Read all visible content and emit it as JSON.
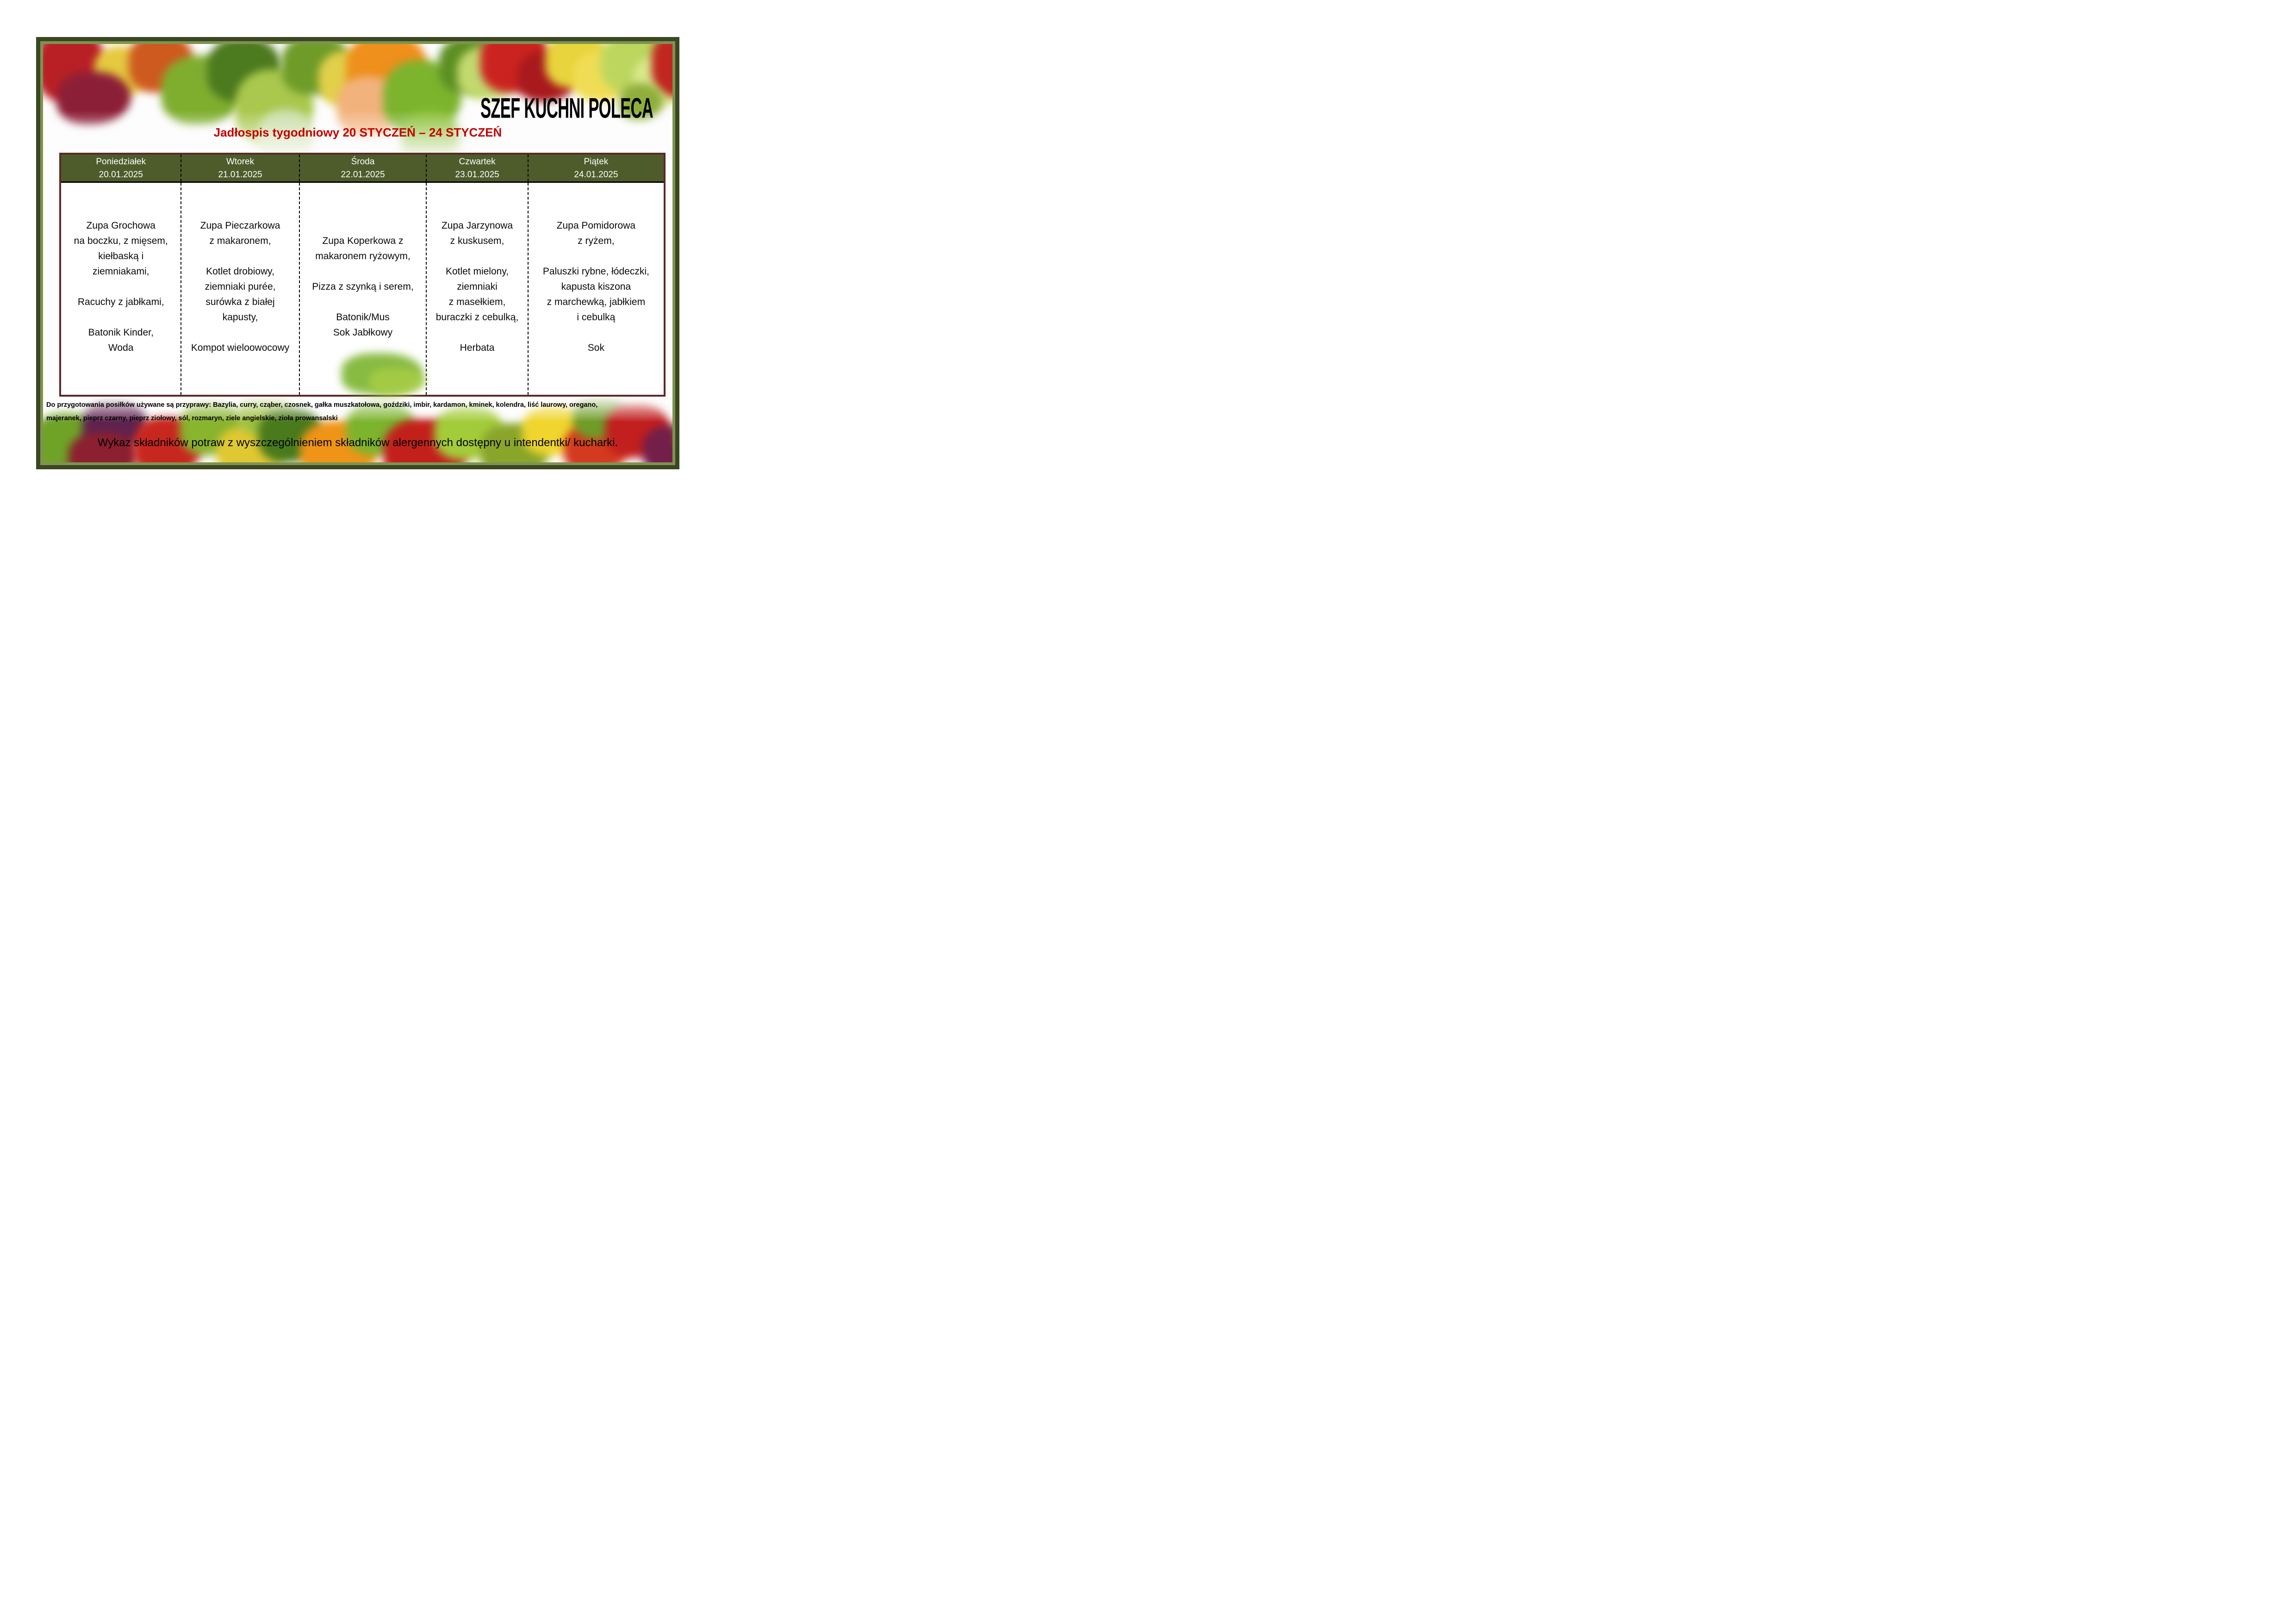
{
  "header": {
    "brand_title": "SZEF KUCHNI POLECA",
    "subtitle": "Jadłospis tygodniowy 20 STYCZEŃ – 24 STYCZEŃ"
  },
  "menu": {
    "days": [
      {
        "name": "Poniedziałek",
        "date": "20.01.2025",
        "items": [
          "Zupa Grochowa",
          "na boczku, z mięsem,",
          "kiełbaską i",
          "ziemniakami,",
          "",
          "Racuchy z jabłkami,",
          "",
          "Batonik Kinder,",
          "Woda"
        ]
      },
      {
        "name": "Wtorek",
        "date": "21.01.2025",
        "items": [
          "Zupa Pieczarkowa",
          "z makaronem,",
          "",
          "Kotlet drobiowy,",
          "ziemniaki purée,",
          "surówka z białej",
          "kapusty,",
          "",
          "Kompot wieloowocowy"
        ]
      },
      {
        "name": "Środa",
        "date": "22.01.2025",
        "items": [
          "",
          "Zupa Koperkowa z",
          "makaronem ryżowym,",
          "",
          "Pizza z szynką i serem,",
          "",
          "Batonik/Mus",
          "Sok Jabłkowy"
        ]
      },
      {
        "name": "Czwartek",
        "date": "23.01.2025",
        "items": [
          "Zupa Jarzynowa",
          "z kuskusem,",
          "",
          "Kotlet mielony,",
          "ziemniaki",
          "z masełkiem,",
          "buraczki z cebulką,",
          "",
          "Herbata"
        ]
      },
      {
        "name": "Piątek",
        "date": "24.01.2025",
        "items": [
          "Zupa Pomidorowa",
          "z ryżem,",
          "",
          "Paluszki rybne, łódeczki,",
          "kapusta kiszona",
          "z marchewką, jabłkiem",
          "i cebulką",
          "",
          "Sok"
        ]
      }
    ]
  },
  "footer": {
    "spices_line1": "Do przygotowania posiłków używane są przyprawy: Bazylia, curry, cząber, czosnek, gałka muszkatołowa, goździki, imbir, kardamon, kminek, kolendra, liść laurowy, oregano,",
    "spices_line2": "majeranek, pieprz czarny, pieprz ziołowy, sól, rozmaryn, ziele angielskie, zioła prowansalski",
    "allergen_note": "Wykaz składników potraw z wyszczególnieniem składników alergennych dostępny u intendentki/ kucharki."
  },
  "colors": {
    "header_green": "#4e5c2b",
    "table_border_maroon": "#5c2827",
    "subtitle_red": "#c40000",
    "frame_dark_green": "#3b4622",
    "frame_light_green": "#7e9350",
    "header_text": "#ffffff"
  }
}
